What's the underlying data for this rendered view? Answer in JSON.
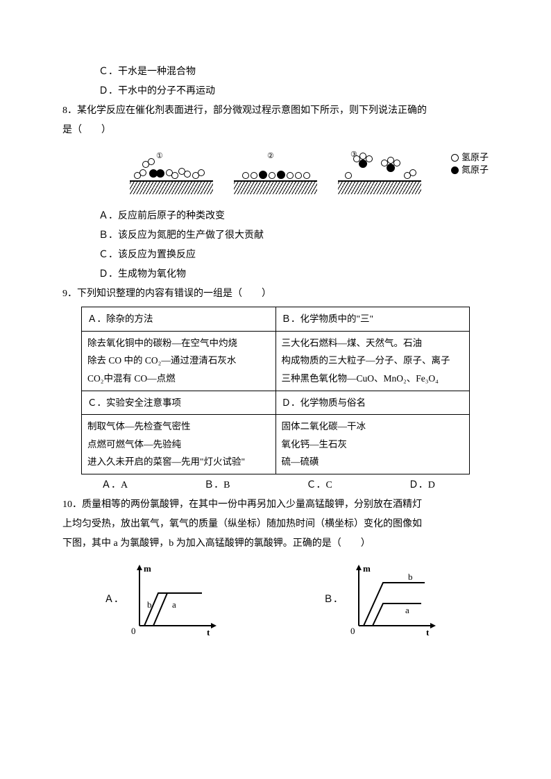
{
  "q7_options": {
    "c": "Ｃ．干水是一种混合物",
    "d": "Ｄ．干水中的分子不再运动"
  },
  "q8": {
    "stem1": "8．某化学反应在催化剂表面进行，部分微观过程示意图如下所示，则下列说法正确的",
    "stem2": "是（　　）",
    "legend_h": "氢原子",
    "legend_n": "氮原子",
    "opt_a": "Ａ．反应前后原子的种类改变",
    "opt_b": "Ｂ．该反应为氮肥的生产做了很大贡献",
    "opt_c": "Ｃ．该反应为置换反应",
    "opt_d": "Ｄ．生成物为氧化物"
  },
  "q9": {
    "stem": "9．下列知识整理的内容有错误的一组是（　　）",
    "cell_a_head": "Ａ．除杂的方法",
    "cell_b_head": "Ｂ．化学物质中的\"三\"",
    "cell_a_body1": "除去氧化铜中的碳粉—在空气中灼烧",
    "cell_a_body2": "除去 CO 中的 CO₂—通过澄清石灰水",
    "cell_a_body3": "CO₂中混有 CO—点燃",
    "cell_b_body1": "三大化石燃料—煤、天然气。石油",
    "cell_b_body2": "构成物质的三大粒子—分子、原子、离子",
    "cell_b_body3": "三种黑色氧化物—CuO、MnO₂、Fe₃O₄",
    "cell_c_head": "Ｃ．实验安全注意事项",
    "cell_d_head": "Ｄ．化学物质与俗名",
    "cell_c_body1": "制取气体—先检查气密性",
    "cell_c_body2": "点燃可燃气体—先验纯",
    "cell_c_body3": "进入久未开启的菜窖—先用\"灯火试验\"",
    "cell_d_body1": "固体二氧化碳—干冰",
    "cell_d_body2": "氧化钙—生石灰",
    "cell_d_body3": "硫—硫磺",
    "ans_a": "Ａ．A",
    "ans_b": "Ｂ．B",
    "ans_c": "Ｃ．C",
    "ans_d": "Ｄ．D"
  },
  "q10": {
    "stem1": "10．质量相等的两份氯酸钾，在其中一份中再另加入少量高锰酸钾，分别放在酒精灯",
    "stem2": "上均匀受热，放出氧气，氧气的质量（纵坐标）随加热时间（横坐标）变化的图像如",
    "stem3": "下图，其中 a 为氯酸钾，b 为加入高锰酸钾的氯酸钾。正确的是（　　）",
    "label_a": "Ａ．",
    "label_b": "Ｂ．",
    "chart": {
      "axis_color": "#000000",
      "line_color": "#000000",
      "line_width": 2,
      "width": 130,
      "height": 110,
      "y_label": "m",
      "x_label": "t",
      "origin_label": "0",
      "chartA": {
        "curve_a": [
          [
            35,
            92
          ],
          [
            55,
            45
          ],
          [
            105,
            45
          ]
        ],
        "curve_b": [
          [
            22,
            92
          ],
          [
            42,
            45
          ],
          [
            85,
            45
          ]
        ],
        "label_a_pos": [
          62,
          66
        ],
        "label_b_pos": [
          26,
          66
        ]
      },
      "chartB": {
        "curve_a": [
          [
            35,
            92
          ],
          [
            50,
            60
          ],
          [
            105,
            60
          ]
        ],
        "curve_b": [
          [
            22,
            92
          ],
          [
            50,
            30
          ],
          [
            110,
            30
          ]
        ],
        "label_a_pos": [
          82,
          74
        ],
        "label_b_pos": [
          86,
          26
        ]
      }
    }
  }
}
